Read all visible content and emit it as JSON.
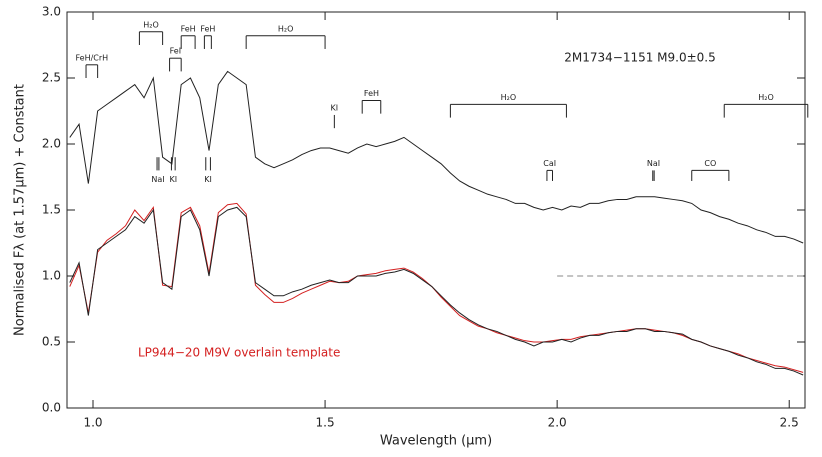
{
  "chart_data": {
    "type": "line",
    "xlabel": "Wavelength (μm)",
    "ylabel": "Normalised Fλ (at 1.57μm) + Constant",
    "object_label": "2M1734−1151  M9.0±0.5",
    "template_label": "LP944−20 M9V overlain template",
    "xlim": [
      0.944,
      2.534
    ],
    "ylim": [
      0,
      3
    ],
    "xticks": [
      {
        "value": 1,
        "label": "1.0"
      },
      1.5,
      {
        "value": 2,
        "label": "2.0"
      },
      2.5
    ],
    "yticks": [
      {
        "value": 0,
        "label": "0.0"
      },
      0.5,
      {
        "value": 1,
        "label": "1.0"
      },
      1.5,
      {
        "value": 2,
        "label": "2.0"
      },
      2.5,
      {
        "value": 3,
        "label": "3.0"
      }
    ],
    "x": [
      0.95,
      0.97,
      0.99,
      1.01,
      1.03,
      1.05,
      1.07,
      1.09,
      1.11,
      1.13,
      1.15,
      1.17,
      1.19,
      1.21,
      1.23,
      1.25,
      1.27,
      1.29,
      1.31,
      1.33,
      1.35,
      1.37,
      1.39,
      1.41,
      1.43,
      1.45,
      1.47,
      1.49,
      1.51,
      1.53,
      1.55,
      1.57,
      1.59,
      1.61,
      1.63,
      1.65,
      1.67,
      1.69,
      1.71,
      1.73,
      1.75,
      1.77,
      1.79,
      1.81,
      1.83,
      1.85,
      1.87,
      1.89,
      1.91,
      1.93,
      1.95,
      1.97,
      1.99,
      2.01,
      2.03,
      2.05,
      2.07,
      2.09,
      2.11,
      2.13,
      2.15,
      2.17,
      2.19,
      2.21,
      2.23,
      2.25,
      2.27,
      2.29,
      2.31,
      2.33,
      2.35,
      2.37,
      2.39,
      2.41,
      2.43,
      2.45,
      2.47,
      2.49,
      2.51,
      2.53
    ],
    "series": [
      {
        "color": "#222222",
        "values": [
          2.05,
          2.15,
          1.7,
          2.25,
          2.3,
          2.35,
          2.4,
          2.45,
          2.35,
          2.5,
          1.9,
          1.85,
          2.45,
          2.5,
          2.35,
          1.95,
          2.45,
          2.55,
          2.5,
          2.45,
          1.9,
          1.85,
          1.82,
          1.85,
          1.88,
          1.92,
          1.95,
          1.97,
          1.97,
          1.95,
          1.93,
          1.97,
          2.0,
          1.98,
          2.0,
          2.02,
          2.05,
          2.0,
          1.95,
          1.9,
          1.85,
          1.78,
          1.72,
          1.68,
          1.65,
          1.62,
          1.6,
          1.58,
          1.55,
          1.55,
          1.52,
          1.5,
          1.52,
          1.5,
          1.53,
          1.52,
          1.55,
          1.55,
          1.57,
          1.58,
          1.58,
          1.6,
          1.6,
          1.6,
          1.59,
          1.58,
          1.57,
          1.55,
          1.5,
          1.48,
          1.45,
          1.43,
          1.4,
          1.38,
          1.35,
          1.33,
          1.3,
          1.3,
          1.28,
          1.25
        ]
      },
      {
        "color": "#222222",
        "values": [
          0.95,
          1.1,
          0.7,
          1.2,
          1.25,
          1.3,
          1.35,
          1.45,
          1.4,
          1.5,
          0.95,
          0.9,
          1.45,
          1.5,
          1.35,
          1.0,
          1.45,
          1.5,
          1.52,
          1.45,
          0.95,
          0.9,
          0.85,
          0.85,
          0.88,
          0.9,
          0.93,
          0.95,
          0.97,
          0.95,
          0.95,
          1.0,
          1.0,
          1.0,
          1.02,
          1.03,
          1.05,
          1.02,
          0.97,
          0.92,
          0.85,
          0.78,
          0.72,
          0.67,
          0.63,
          0.6,
          0.58,
          0.55,
          0.52,
          0.5,
          0.47,
          0.5,
          0.5,
          0.52,
          0.5,
          0.53,
          0.55,
          0.55,
          0.57,
          0.58,
          0.58,
          0.6,
          0.6,
          0.58,
          0.58,
          0.57,
          0.56,
          0.52,
          0.5,
          0.47,
          0.45,
          0.43,
          0.4,
          0.38,
          0.35,
          0.33,
          0.3,
          0.3,
          0.28,
          0.25
        ]
      },
      {
        "color": "#d42020",
        "values": [
          0.92,
          1.08,
          0.72,
          1.18,
          1.27,
          1.32,
          1.38,
          1.5,
          1.42,
          1.52,
          0.93,
          0.92,
          1.48,
          1.52,
          1.38,
          1.02,
          1.48,
          1.54,
          1.55,
          1.47,
          0.93,
          0.86,
          0.8,
          0.8,
          0.83,
          0.87,
          0.9,
          0.93,
          0.96,
          0.95,
          0.96,
          1.0,
          1.01,
          1.02,
          1.04,
          1.05,
          1.06,
          1.03,
          0.98,
          0.92,
          0.84,
          0.77,
          0.7,
          0.66,
          0.62,
          0.6,
          0.57,
          0.55,
          0.53,
          0.51,
          0.5,
          0.5,
          0.51,
          0.52,
          0.52,
          0.54,
          0.55,
          0.56,
          0.57,
          0.58,
          0.59,
          0.6,
          0.6,
          0.59,
          0.58,
          0.57,
          0.55,
          0.52,
          0.5,
          0.47,
          0.45,
          0.43,
          0.41,
          0.38,
          0.36,
          0.34,
          0.32,
          0.31,
          0.29,
          0.27
        ]
      }
    ],
    "hline": {
      "y": 1.0,
      "x": [
        2.0,
        2.53
      ]
    },
    "annotations": [
      {
        "text": "FeH/CrH",
        "style": "bracket",
        "x": [
          0.985,
          1.01
        ],
        "y": [
          2.6,
          2.5
        ]
      },
      {
        "text": "H₂O",
        "style": "bracket",
        "x": [
          1.1,
          1.15
        ],
        "y": [
          2.85,
          2.75
        ]
      },
      {
        "text": "FeI",
        "style": "bracket",
        "x": [
          1.165,
          1.19
        ],
        "y": [
          2.65,
          2.55
        ]
      },
      {
        "text": "FeH",
        "style": "bracket",
        "x": [
          1.19,
          1.22
        ],
        "y": [
          2.82,
          2.72
        ]
      },
      {
        "text": "FeH",
        "style": "bracket",
        "x": [
          1.24,
          1.255
        ],
        "y": [
          2.82,
          2.72
        ]
      },
      {
        "text": "H₂O",
        "style": "bracket",
        "x": [
          1.33,
          1.5
        ],
        "y": [
          2.82,
          2.72
        ]
      },
      {
        "text": "KI",
        "style": "lines-above",
        "x": [
          1.52
        ],
        "y": [
          2.22,
          2.12
        ]
      },
      {
        "text": "FeH",
        "style": "bracket",
        "x": [
          1.58,
          1.62
        ],
        "y": [
          2.33,
          2.23
        ]
      },
      {
        "text": "H₂O",
        "style": "bracket",
        "x": [
          1.77,
          2.02
        ],
        "y": [
          2.3,
          2.2
        ]
      },
      {
        "text": "H₂O",
        "style": "bracket",
        "x": [
          2.36,
          2.54
        ],
        "y": [
          2.3,
          2.2
        ]
      },
      {
        "text": "NaI",
        "style": "lines-below",
        "x": [
          1.138,
          1.142
        ],
        "y": [
          1.9,
          1.8
        ]
      },
      {
        "text": "KI",
        "style": "lines-below",
        "x": [
          1.169,
          1.177
        ],
        "y": [
          1.9,
          1.8
        ]
      },
      {
        "text": "KI",
        "style": "lines-below",
        "x": [
          1.243,
          1.253
        ],
        "y": [
          1.9,
          1.8
        ]
      },
      {
        "text": "CaI",
        "style": "bracket",
        "x": [
          1.978,
          1.99
        ],
        "y": [
          1.8,
          1.72
        ]
      },
      {
        "text": "NaI",
        "style": "lines-above",
        "x": [
          2.206,
          2.209
        ],
        "y": [
          1.8,
          1.72
        ]
      },
      {
        "text": "CO",
        "style": "bracket",
        "x": [
          2.29,
          2.37
        ],
        "y": [
          1.8,
          1.72
        ]
      }
    ]
  }
}
